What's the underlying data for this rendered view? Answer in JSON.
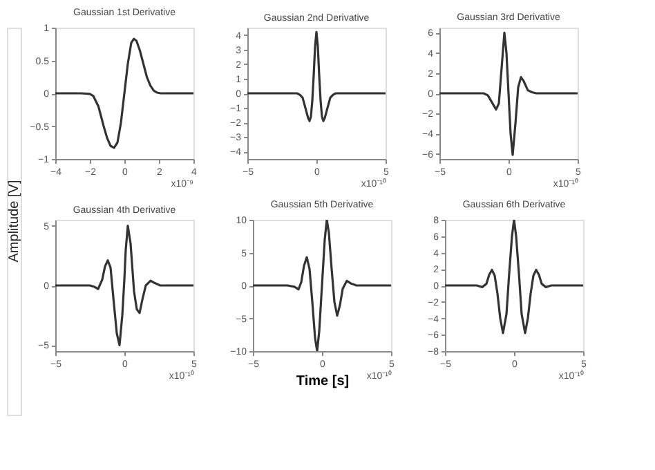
{
  "chart_data": [
    {
      "type": "line",
      "title": "Gaussian 1st Derivative",
      "ylabel": "Amplitude [V]",
      "annotations": [
        "x10⁻⁹"
      ],
      "xlim": [
        -4,
        4
      ],
      "xticks": [
        -4,
        -2,
        0,
        2,
        4
      ],
      "ylim": [
        -1,
        1
      ],
      "yticks": [
        -1,
        -0.5,
        0,
        0.5,
        1
      ],
      "grid": false,
      "marker": "none",
      "line_style": "solid",
      "series": [
        {
          "color": "#333333",
          "x": [
            -4,
            -2.5,
            -2,
            -1.8,
            -1.5,
            -1.2,
            -1,
            -0.8,
            -0.6,
            -0.4,
            -0.2,
            0,
            0.2,
            0.4,
            0.55,
            0.7,
            0.9,
            1.1,
            1.3,
            1.5,
            1.7,
            1.9,
            2.1,
            4
          ],
          "values": [
            0,
            0,
            -0.01,
            -0.04,
            -0.2,
            -0.5,
            -0.68,
            -0.8,
            -0.83,
            -0.75,
            -0.45,
            0,
            0.45,
            0.77,
            0.83,
            0.8,
            0.65,
            0.45,
            0.25,
            0.12,
            0.04,
            0.01,
            0,
            0
          ]
        }
      ]
    },
    {
      "type": "line",
      "title": "Gaussian 2nd Derivative",
      "annotations": [
        "x10⁻¹⁰"
      ],
      "xlim": [
        -5,
        5
      ],
      "xticks": [
        -5,
        0,
        5
      ],
      "ylim": [
        -4.5,
        4.5
      ],
      "yticks": [
        -4,
        -3,
        -2,
        -1,
        0,
        1,
        2,
        3,
        4
      ],
      "grid": false,
      "marker": "none",
      "line_style": "solid",
      "series": [
        {
          "color": "#333333",
          "x": [
            -5,
            -1.4,
            -1.2,
            -1,
            -0.8,
            -0.6,
            -0.5,
            -0.4,
            -0.3,
            -0.2,
            -0.1,
            0,
            0.1,
            0.2,
            0.3,
            0.4,
            0.5,
            0.6,
            0.8,
            1,
            1.2,
            1.4,
            5
          ],
          "values": [
            0,
            0,
            -0.1,
            -0.3,
            -1.0,
            -1.7,
            -1.9,
            -1.6,
            -0.5,
            1.2,
            3.2,
            4.2,
            3.2,
            1.2,
            -0.5,
            -1.6,
            -1.9,
            -1.7,
            -1.0,
            -0.3,
            -0.1,
            0,
            0
          ]
        }
      ]
    },
    {
      "type": "line",
      "title": "Gaussian 3rd Derivative",
      "annotations": [
        "x10⁻¹⁰"
      ],
      "xlim": [
        -5,
        5
      ],
      "xticks": [
        -5,
        0,
        5
      ],
      "ylim": [
        -6.5,
        6.5
      ],
      "yticks": [
        -6,
        -4,
        -2,
        0,
        2,
        4,
        6
      ],
      "grid": false,
      "marker": "none",
      "line_style": "solid",
      "series": [
        {
          "color": "#333333",
          "x": [
            -5,
            -1.8,
            -1.5,
            -1.2,
            -0.9,
            -0.7,
            -0.5,
            -0.3,
            -0.15,
            0,
            0.15,
            0.3,
            0.5,
            0.7,
            0.9,
            1.1,
            1.4,
            1.7,
            2,
            5
          ],
          "values": [
            0,
            0,
            -0.2,
            -0.9,
            -1.6,
            -1.0,
            2.5,
            6.0,
            4.0,
            0,
            -4.0,
            -6.1,
            -3.0,
            0.6,
            1.6,
            1.2,
            0.3,
            0.1,
            0,
            0
          ]
        }
      ]
    },
    {
      "type": "line",
      "title": "Gaussian 4th Derivative",
      "annotations": [
        "x10⁻¹⁰"
      ],
      "xlim": [
        -5,
        5
      ],
      "xticks": [
        -5,
        0,
        5
      ],
      "ylim": [
        -5.5,
        5.5
      ],
      "yticks": [
        -5,
        0,
        5
      ],
      "grid": false,
      "marker": "none",
      "line_style": "solid",
      "series": [
        {
          "color": "#333333",
          "x": [
            -5,
            -2.5,
            -2.2,
            -1.9,
            -1.6,
            -1.4,
            -1.2,
            -1.0,
            -0.8,
            -0.55,
            -0.35,
            -0.15,
            0,
            0.1,
            0.25,
            0.45,
            0.7,
            0.9,
            1.1,
            1.3,
            1.55,
            1.9,
            2.2,
            2.6,
            5
          ],
          "values": [
            0,
            0,
            -0.1,
            -0.3,
            0.5,
            1.6,
            2.1,
            1.5,
            -1.0,
            -4.0,
            -5.0,
            -2.5,
            0.5,
            3.0,
            5.0,
            3.5,
            -0.5,
            -2.0,
            -2.3,
            -1.2,
            0,
            0.4,
            0.2,
            0,
            0
          ]
        }
      ]
    },
    {
      "type": "line",
      "title": "Gaussian 5th Derivative",
      "xlabel": "Time [s]",
      "annotations": [
        "x10⁻¹⁰"
      ],
      "xlim": [
        -5,
        5
      ],
      "xticks": [
        -5,
        0,
        5
      ],
      "ylim": [
        -10,
        10
      ],
      "yticks": [
        -10,
        -5,
        0,
        5,
        10
      ],
      "grid": false,
      "marker": "none",
      "line_style": "solid",
      "series": [
        {
          "color": "#333333",
          "x": [
            -5,
            -2.5,
            -2,
            -1.7,
            -1.5,
            -1.3,
            -1.1,
            -0.9,
            -0.7,
            -0.5,
            -0.35,
            -0.2,
            0,
            0.2,
            0.35,
            0.5,
            0.7,
            0.9,
            1.1,
            1.3,
            1.5,
            1.8,
            2.1,
            2.5,
            5
          ],
          "values": [
            0,
            0,
            -0.2,
            -0.6,
            0.5,
            3.0,
            4.3,
            2.5,
            -2.5,
            -8.0,
            -10,
            -7,
            0,
            7,
            10,
            8.0,
            2.5,
            -2.5,
            -4.6,
            -3.0,
            -0.5,
            0.7,
            0.3,
            0,
            0
          ]
        }
      ]
    },
    {
      "type": "line",
      "title": "Gaussian 6th Derivative",
      "annotations": [
        "x10⁻¹⁰"
      ],
      "xlim": [
        -5,
        5
      ],
      "xticks": [
        -5,
        0,
        5
      ],
      "ylim": [
        -8,
        8
      ],
      "yticks": [
        -8,
        -6,
        -4,
        -2,
        0,
        2,
        4,
        6,
        8
      ],
      "grid": false,
      "marker": "none",
      "line_style": "solid",
      "series": [
        {
          "color": "#333333",
          "x": [
            -5,
            -2.7,
            -2.3,
            -2.0,
            -1.8,
            -1.6,
            -1.4,
            -1.2,
            -1.0,
            -0.8,
            -0.55,
            -0.35,
            -0.15,
            0,
            0.15,
            0.35,
            0.55,
            0.8,
            1.0,
            1.2,
            1.4,
            1.6,
            1.8,
            2.0,
            2.3,
            2.7,
            5
          ],
          "values": [
            0,
            0,
            -0.2,
            0.2,
            1.3,
            1.9,
            1.2,
            -1.0,
            -4.0,
            -5.8,
            -3.5,
            1.5,
            6,
            8,
            6,
            1.5,
            -3.5,
            -5.8,
            -4.0,
            -1.0,
            1.2,
            1.9,
            1.3,
            0.2,
            -0.2,
            0,
            0
          ]
        }
      ]
    }
  ]
}
